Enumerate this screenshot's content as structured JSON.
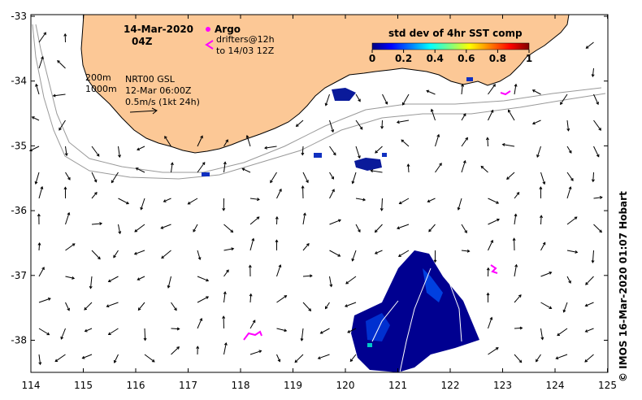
{
  "map": {
    "date": "14-Mar-2020",
    "time": "04Z",
    "legend": {
      "argo": "Argo",
      "drifters_line1": "drifters@12h",
      "drifters_line2": "to 14/03 12Z",
      "contour_200": "200m",
      "contour_1000": "1000m",
      "model_line1": "NRT00 GSL",
      "model_line2": "12-Mar 06:00Z",
      "scale_text": "0.5m/s (1kt 24h)"
    },
    "colorbar": {
      "title": "std dev of 4hr SST comp",
      "ticks": [
        "0",
        "0.2",
        "0.4",
        "0.6",
        "0.8",
        "1"
      ],
      "colors": [
        "#000080",
        "#0000ff",
        "#0080ff",
        "#00ffff",
        "#80ff80",
        "#ffff00",
        "#ff8000",
        "#ff0000",
        "#800000"
      ]
    },
    "x_ticks": [
      "114",
      "115",
      "116",
      "117",
      "118",
      "119",
      "120",
      "121",
      "122",
      "123",
      "124",
      "125"
    ],
    "y_ticks": [
      "-33",
      "-34",
      "-35",
      "-36",
      "-37",
      "-38"
    ],
    "credit": "© IMOS 16-Mar-2020 01:07 Hobart",
    "land_color": "#fcc896",
    "drifter_color": "#ff00ff"
  }
}
